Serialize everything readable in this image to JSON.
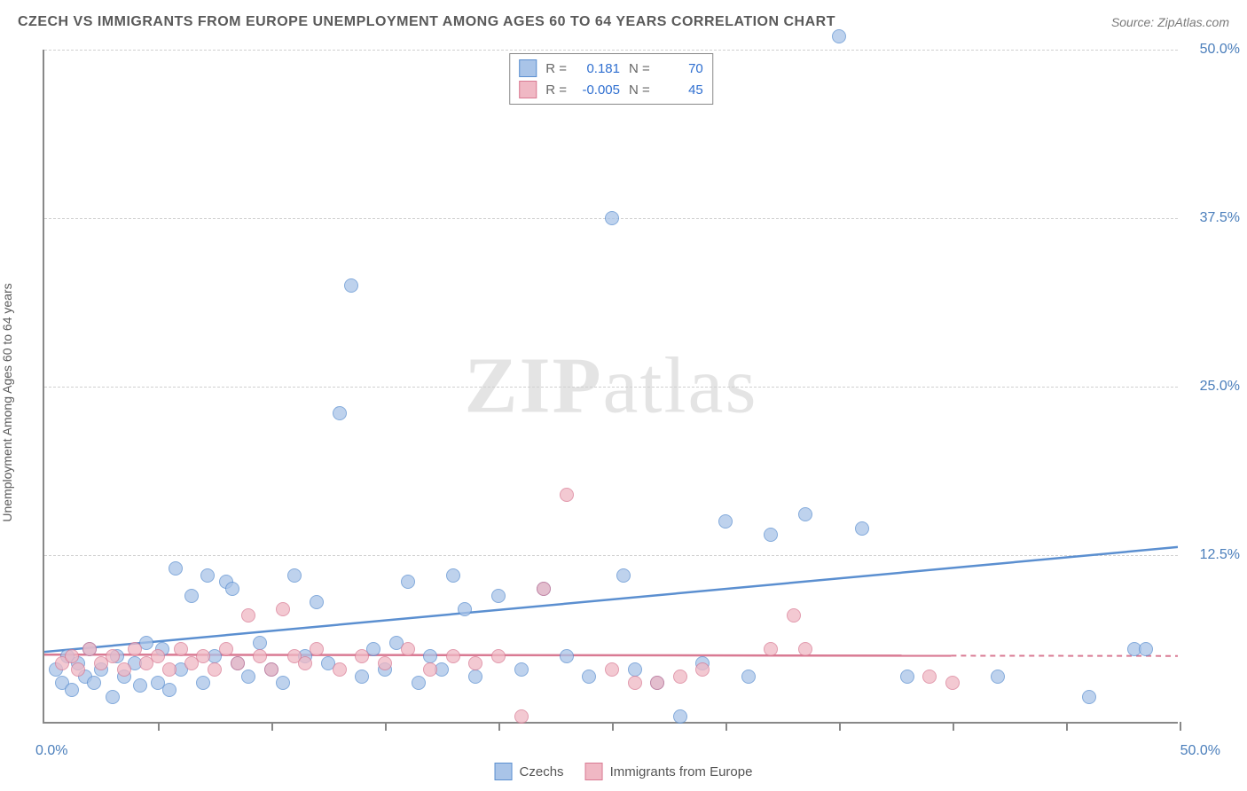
{
  "title": "CZECH VS IMMIGRANTS FROM EUROPE UNEMPLOYMENT AMONG AGES 60 TO 64 YEARS CORRELATION CHART",
  "source": "Source: ZipAtlas.com",
  "y_axis_label": "Unemployment Among Ages 60 to 64 years",
  "watermark": {
    "bold": "ZIP",
    "rest": "atlas"
  },
  "chart": {
    "type": "scatter",
    "xlim": [
      0,
      50
    ],
    "ylim": [
      0,
      50
    ],
    "x_tick_positions": [
      0,
      5,
      10,
      15,
      20,
      25,
      30,
      35,
      40,
      45,
      50
    ],
    "x_tick_labels_shown": {
      "0": "0.0%",
      "50": "50.0%"
    },
    "y_tick_positions": [
      12.5,
      25.0,
      37.5,
      50.0
    ],
    "y_tick_labels": [
      "12.5%",
      "25.0%",
      "37.5%",
      "50.0%"
    ],
    "gridline_color": "#d0d0d0",
    "background_color": "#ffffff",
    "axis_color": "#888888",
    "tick_label_color": "#4a7ebb",
    "series": [
      {
        "name": "Czechs",
        "fill_color": "#a9c4e8",
        "border_color": "#5b8fd0",
        "r_value": "0.181",
        "n_value": "70",
        "trend": {
          "y_at_x0": 5.2,
          "y_at_x50": 13.0,
          "solid_until_x": 50
        },
        "points": [
          [
            0.5,
            4.0
          ],
          [
            0.8,
            3.0
          ],
          [
            1.0,
            5.0
          ],
          [
            1.2,
            2.5
          ],
          [
            1.5,
            4.5
          ],
          [
            1.8,
            3.5
          ],
          [
            2.0,
            5.5
          ],
          [
            2.2,
            3.0
          ],
          [
            2.5,
            4.0
          ],
          [
            3.0,
            2.0
          ],
          [
            3.2,
            5.0
          ],
          [
            3.5,
            3.5
          ],
          [
            4.0,
            4.5
          ],
          [
            4.2,
            2.8
          ],
          [
            4.5,
            6.0
          ],
          [
            5.0,
            3.0
          ],
          [
            5.2,
            5.5
          ],
          [
            5.5,
            2.5
          ],
          [
            5.8,
            11.5
          ],
          [
            6.0,
            4.0
          ],
          [
            6.5,
            9.5
          ],
          [
            7.0,
            3.0
          ],
          [
            7.2,
            11.0
          ],
          [
            7.5,
            5.0
          ],
          [
            8.0,
            10.5
          ],
          [
            8.3,
            10.0
          ],
          [
            8.5,
            4.5
          ],
          [
            9.0,
            3.5
          ],
          [
            9.5,
            6.0
          ],
          [
            10.0,
            4.0
          ],
          [
            10.5,
            3.0
          ],
          [
            11.0,
            11.0
          ],
          [
            11.5,
            5.0
          ],
          [
            12.0,
            9.0
          ],
          [
            12.5,
            4.5
          ],
          [
            13.0,
            23.0
          ],
          [
            13.5,
            32.5
          ],
          [
            14.0,
            3.5
          ],
          [
            14.5,
            5.5
          ],
          [
            15.0,
            4.0
          ],
          [
            15.5,
            6.0
          ],
          [
            16.0,
            10.5
          ],
          [
            16.5,
            3.0
          ],
          [
            17.0,
            5.0
          ],
          [
            17.5,
            4.0
          ],
          [
            18.0,
            11.0
          ],
          [
            18.5,
            8.5
          ],
          [
            19.0,
            3.5
          ],
          [
            20.0,
            9.5
          ],
          [
            21.0,
            4.0
          ],
          [
            22.0,
            10.0
          ],
          [
            23.0,
            5.0
          ],
          [
            24.0,
            3.5
          ],
          [
            25.0,
            37.5
          ],
          [
            25.5,
            11.0
          ],
          [
            26.0,
            4.0
          ],
          [
            27.0,
            3.0
          ],
          [
            28.0,
            0.5
          ],
          [
            29.0,
            4.5
          ],
          [
            30.0,
            15.0
          ],
          [
            31.0,
            3.5
          ],
          [
            32.0,
            14.0
          ],
          [
            33.5,
            15.5
          ],
          [
            35.0,
            51.0
          ],
          [
            36.0,
            14.5
          ],
          [
            38.0,
            3.5
          ],
          [
            42.0,
            3.5
          ],
          [
            46.0,
            2.0
          ],
          [
            48.0,
            5.5
          ],
          [
            48.5,
            5.5
          ]
        ]
      },
      {
        "name": "Immigrants from Europe",
        "fill_color": "#f0b8c4",
        "border_color": "#d97a93",
        "r_value": "-0.005",
        "n_value": "45",
        "trend": {
          "y_at_x0": 5.0,
          "y_at_x50": 4.9,
          "solid_until_x": 40
        },
        "points": [
          [
            0.8,
            4.5
          ],
          [
            1.2,
            5.0
          ],
          [
            1.5,
            4.0
          ],
          [
            2.0,
            5.5
          ],
          [
            2.5,
            4.5
          ],
          [
            3.0,
            5.0
          ],
          [
            3.5,
            4.0
          ],
          [
            4.0,
            5.5
          ],
          [
            4.5,
            4.5
          ],
          [
            5.0,
            5.0
          ],
          [
            5.5,
            4.0
          ],
          [
            6.0,
            5.5
          ],
          [
            6.5,
            4.5
          ],
          [
            7.0,
            5.0
          ],
          [
            7.5,
            4.0
          ],
          [
            8.0,
            5.5
          ],
          [
            8.5,
            4.5
          ],
          [
            9.0,
            8.0
          ],
          [
            9.5,
            5.0
          ],
          [
            10.0,
            4.0
          ],
          [
            10.5,
            8.5
          ],
          [
            11.0,
            5.0
          ],
          [
            11.5,
            4.5
          ],
          [
            12.0,
            5.5
          ],
          [
            13.0,
            4.0
          ],
          [
            14.0,
            5.0
          ],
          [
            15.0,
            4.5
          ],
          [
            16.0,
            5.5
          ],
          [
            17.0,
            4.0
          ],
          [
            18.0,
            5.0
          ],
          [
            19.0,
            4.5
          ],
          [
            20.0,
            5.0
          ],
          [
            21.0,
            0.5
          ],
          [
            22.0,
            10.0
          ],
          [
            23.0,
            17.0
          ],
          [
            25.0,
            4.0
          ],
          [
            26.0,
            3.0
          ],
          [
            27.0,
            3.0
          ],
          [
            28.0,
            3.5
          ],
          [
            29.0,
            4.0
          ],
          [
            32.0,
            5.5
          ],
          [
            33.0,
            8.0
          ],
          [
            33.5,
            5.5
          ],
          [
            39.0,
            3.5
          ],
          [
            40.0,
            3.0
          ]
        ]
      }
    ]
  },
  "stats_legend_labels": {
    "R": "R =",
    "N": "N ="
  },
  "bottom_legend": [
    "Czechs",
    "Immigrants from Europe"
  ]
}
